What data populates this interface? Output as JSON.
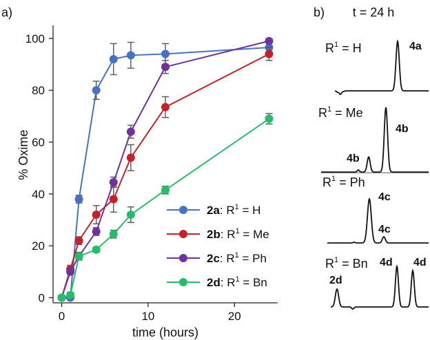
{
  "panel_a": {
    "label": "a)",
    "chart_data": {
      "type": "line",
      "xlabel": "time (hours)",
      "ylabel": "% Oxime",
      "xlim": [
        -1,
        25
      ],
      "ylim": [
        -2,
        105
      ],
      "xticks": [
        0,
        10,
        20
      ],
      "yticks": [
        0,
        20,
        40,
        60,
        80,
        100
      ],
      "grid": false,
      "legend_position": "center-right",
      "series": [
        {
          "name": "2a",
          "name_rest": ": R",
          "sup": "1",
          "name_tail": " = H",
          "color": "#4472C4",
          "x": [
            0,
            1,
            2,
            4,
            6,
            8,
            12,
            24
          ],
          "y": [
            0,
            0,
            38,
            80,
            92,
            93.5,
            94,
            96.5
          ],
          "err": [
            0,
            0,
            1.5,
            3.5,
            6,
            5,
            4,
            0
          ]
        },
        {
          "name": "2b",
          "name_rest": ": R",
          "sup": "1",
          "name_tail": " = Me",
          "color": "#C8202A",
          "x": [
            0,
            1,
            2,
            4,
            6,
            8,
            12,
            24
          ],
          "y": [
            0,
            11,
            22,
            32,
            38,
            54,
            73.5,
            94
          ],
          "err": [
            0,
            1.5,
            1.5,
            3.5,
            5,
            5,
            4,
            2.5
          ]
        },
        {
          "name": "2c",
          "name_rest": ": R",
          "sup": "1",
          "name_tail": " = Ph",
          "color": "#7030A0",
          "x": [
            0,
            1,
            2,
            4,
            6,
            8,
            12,
            24
          ],
          "y": [
            0,
            10,
            16,
            25.5,
            44.5,
            64,
            89,
            99
          ],
          "err": [
            0,
            1,
            1.5,
            1.5,
            2,
            2.5,
            2.5,
            0
          ]
        },
        {
          "name": "2d",
          "name_rest": ": R",
          "sup": "1",
          "name_tail": " = Bn",
          "color": "#24BD6A",
          "x": [
            0,
            1,
            2,
            4,
            6,
            8,
            12,
            24
          ],
          "y": [
            0,
            1,
            16,
            18.5,
            24.5,
            32,
            41.5,
            69
          ],
          "err": [
            0,
            1,
            1,
            1,
            1.5,
            3,
            1.5,
            2
          ]
        }
      ]
    }
  },
  "panel_b": {
    "label": "b)",
    "title": "t = 24 h",
    "traces": [
      {
        "label_pre": "R",
        "sup": "1",
        "label_post": " = H",
        "peaks": [
          {
            "text": "4a"
          }
        ]
      },
      {
        "label_pre": "R",
        "sup": "1",
        "label_post": " = Me",
        "peaks": [
          {
            "text": "4b"
          },
          {
            "text": "4b"
          }
        ]
      },
      {
        "label_pre": "R",
        "sup": "1",
        "label_post": " = Ph",
        "peaks": [
          {
            "text": "4c"
          },
          {
            "text": "4c"
          }
        ]
      },
      {
        "label_pre": "R",
        "sup": "1",
        "label_post": " = Bn",
        "peaks": [
          {
            "text": "2d"
          },
          {
            "text": "4d"
          },
          {
            "text": "4d"
          }
        ]
      }
    ]
  }
}
